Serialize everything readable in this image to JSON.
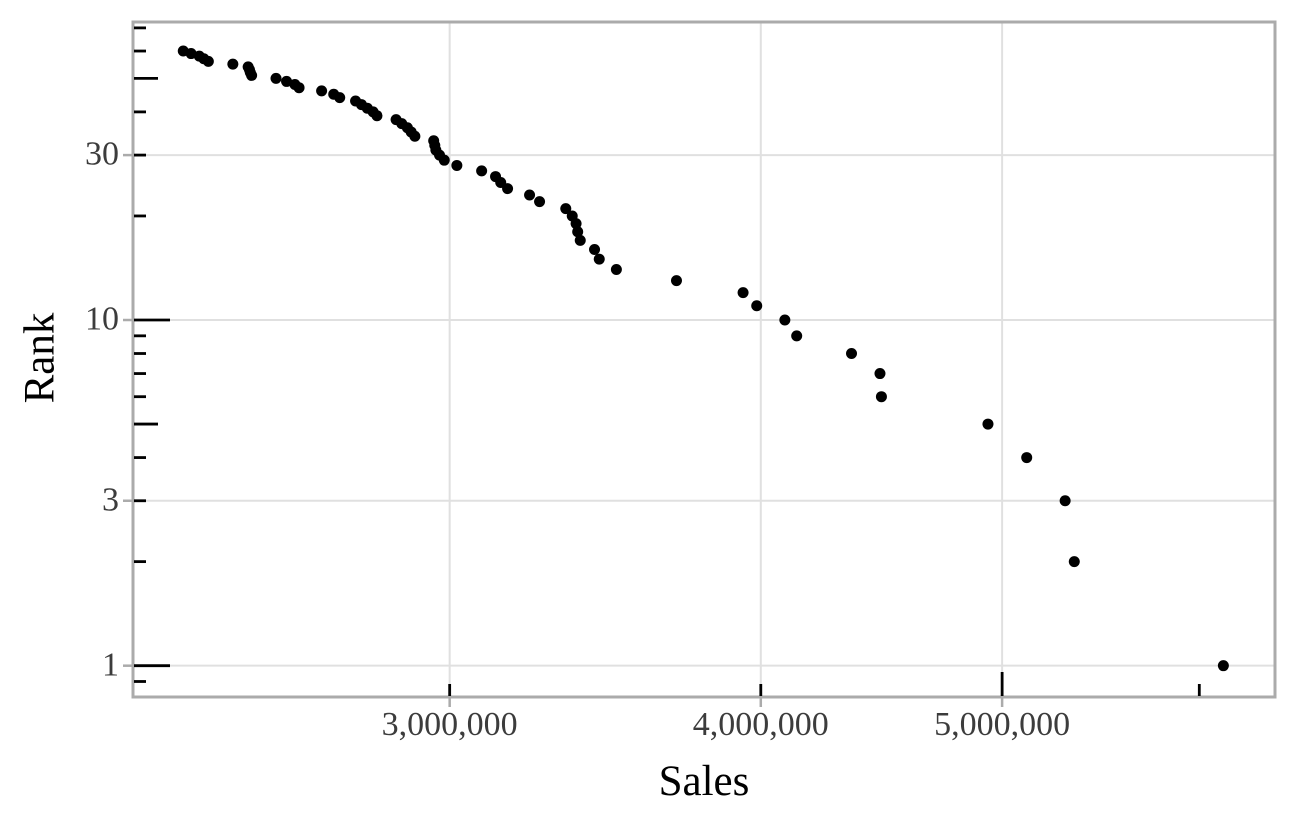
{
  "chart_data": {
    "type": "scatter",
    "title": "",
    "xlabel": "Sales",
    "ylabel": "Rank",
    "x_scale": "log10",
    "y_scale": "log10",
    "grid": "major-only",
    "legend": "none",
    "x_range": [
      2238500,
      6435000
    ],
    "y_range": [
      0.8117,
      72.8
    ],
    "x_breaks": [
      3000000,
      4000000,
      5000000
    ],
    "x_break_labels": [
      "3,000,000",
      "4,000,000",
      "5,000,000"
    ],
    "y_breaks": [
      30,
      10,
      3,
      1
    ],
    "y_break_labels": [
      "30",
      "10",
      "3",
      "1"
    ],
    "x_log_ticks": [
      [
        3000000,
        "s"
      ],
      [
        4000000,
        "s"
      ],
      [
        5000000,
        "m"
      ],
      [
        6000000,
        "s"
      ]
    ],
    "y_log_ticks": [
      [
        70,
        "s"
      ],
      [
        60,
        "s"
      ],
      [
        50,
        "m"
      ],
      [
        40,
        "s"
      ],
      [
        30,
        "s"
      ],
      [
        20,
        "s"
      ],
      [
        10,
        "l"
      ],
      [
        9,
        "s"
      ],
      [
        8,
        "s"
      ],
      [
        7,
        "s"
      ],
      [
        6,
        "s"
      ],
      [
        5,
        "m"
      ],
      [
        4,
        "s"
      ],
      [
        3,
        "s"
      ],
      [
        2,
        "s"
      ],
      [
        1,
        "l"
      ],
      [
        0.9,
        "s"
      ]
    ],
    "log_tick_lengths": {
      "s": 12,
      "m": 24,
      "l": 36
    },
    "point_radius": 5.5,
    "style": {
      "panel_background": "#ffffff",
      "grid_color": "#e0e0e0",
      "border_color": "#abababff",
      "outside_tick_color": "#ababab",
      "log_tick_color": "#000000",
      "point_color": "#000000",
      "tick_label_color": "#3c3c3c",
      "title_color": "#000000"
    },
    "points": [
      {
        "rank": 1,
        "sales": 6135000
      },
      {
        "rank": 2,
        "sales": 5345000
      },
      {
        "rank": 3,
        "sales": 5300000
      },
      {
        "rank": 4,
        "sales": 5115000
      },
      {
        "rank": 5,
        "sales": 4935000
      },
      {
        "rank": 6,
        "sales": 4472000
      },
      {
        "rank": 7,
        "sales": 4466000
      },
      {
        "rank": 8,
        "sales": 4350000
      },
      {
        "rank": 9,
        "sales": 4135000
      },
      {
        "rank": 10,
        "sales": 4090000
      },
      {
        "rank": 11,
        "sales": 3985000
      },
      {
        "rank": 12,
        "sales": 3935000
      },
      {
        "rank": 13,
        "sales": 3700000
      },
      {
        "rank": 14,
        "sales": 3500000
      },
      {
        "rank": 15,
        "sales": 3445000
      },
      {
        "rank": 16,
        "sales": 3430000
      },
      {
        "rank": 17,
        "sales": 3385000
      },
      {
        "rank": 18,
        "sales": 3377000
      },
      {
        "rank": 19,
        "sales": 3372000
      },
      {
        "rank": 20,
        "sales": 3360000
      },
      {
        "rank": 21,
        "sales": 3340000
      },
      {
        "rank": 22,
        "sales": 3260000
      },
      {
        "rank": 23,
        "sales": 3230000
      },
      {
        "rank": 24,
        "sales": 3165000
      },
      {
        "rank": 25,
        "sales": 3145000
      },
      {
        "rank": 26,
        "sales": 3130000
      },
      {
        "rank": 27,
        "sales": 3090000
      },
      {
        "rank": 28,
        "sales": 3020000
      },
      {
        "rank": 29,
        "sales": 2985000
      },
      {
        "rank": 30,
        "sales": 2972000
      },
      {
        "rank": 31,
        "sales": 2962000
      },
      {
        "rank": 32,
        "sales": 2959000
      },
      {
        "rank": 33,
        "sales": 2956000
      },
      {
        "rank": 34,
        "sales": 2905000
      },
      {
        "rank": 35,
        "sales": 2895000
      },
      {
        "rank": 36,
        "sales": 2885000
      },
      {
        "rank": 37,
        "sales": 2870000
      },
      {
        "rank": 38,
        "sales": 2855000
      },
      {
        "rank": 39,
        "sales": 2805000
      },
      {
        "rank": 40,
        "sales": 2795000
      },
      {
        "rank": 41,
        "sales": 2780000
      },
      {
        "rank": 42,
        "sales": 2765000
      },
      {
        "rank": 43,
        "sales": 2750000
      },
      {
        "rank": 44,
        "sales": 2710000
      },
      {
        "rank": 45,
        "sales": 2695000
      },
      {
        "rank": 46,
        "sales": 2665000
      },
      {
        "rank": 47,
        "sales": 2610000
      },
      {
        "rank": 48,
        "sales": 2600000
      },
      {
        "rank": 49,
        "sales": 2580000
      },
      {
        "rank": 50,
        "sales": 2555000
      },
      {
        "rank": 51,
        "sales": 2498000
      },
      {
        "rank": 52,
        "sales": 2495000
      },
      {
        "rank": 53,
        "sales": 2493000
      },
      {
        "rank": 54,
        "sales": 2490000
      },
      {
        "rank": 55,
        "sales": 2455000
      },
      {
        "rank": 56,
        "sales": 2400000
      },
      {
        "rank": 57,
        "sales": 2390000
      },
      {
        "rank": 58,
        "sales": 2380000
      },
      {
        "rank": 59,
        "sales": 2362000
      },
      {
        "rank": 60,
        "sales": 2345000
      }
    ]
  }
}
